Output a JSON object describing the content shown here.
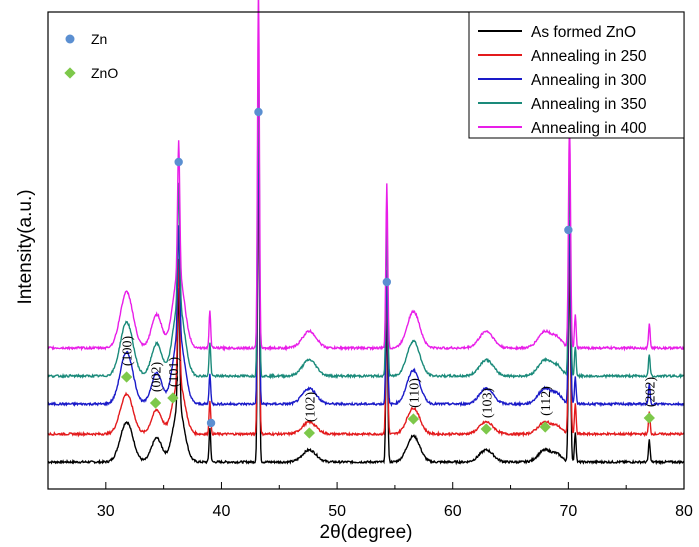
{
  "chart_data": {
    "type": "line",
    "title": "",
    "xlabel": "2θ(degree)",
    "ylabel": "Intensity(a.u.)",
    "xlim": [
      25,
      80
    ],
    "xticks": [
      30,
      40,
      50,
      60,
      70,
      80
    ],
    "y_ticks_shown": false,
    "grid": false,
    "legend_position": "top-right",
    "series": [
      {
        "name": "As formed ZnO",
        "color": "#000000",
        "baseline": 0,
        "zn_scale": 1.0,
        "zno_scale": 1.0
      },
      {
        "name": "Annealing in 250",
        "color": "#e31a1c",
        "baseline": 28,
        "zn_scale": 1.0,
        "zno_scale": 1.0
      },
      {
        "name": "Annealing in 300",
        "color": "#1a1ac8",
        "baseline": 58,
        "zn_scale": 0.9,
        "zno_scale": 1.3
      },
      {
        "name": "Annealing in 350",
        "color": "#1a8a7a",
        "baseline": 86,
        "zn_scale": 1.0,
        "zno_scale": 1.35
      },
      {
        "name": "Annealing in 400",
        "color": "#e81ee8",
        "baseline": 114,
        "zn_scale": 1.1,
        "zno_scale": 1.4
      }
    ],
    "peaks": {
      "zno": [
        {
          "x": 31.8,
          "h": 40,
          "w": 0.55
        },
        {
          "x": 34.4,
          "h": 24,
          "w": 0.45
        },
        {
          "x": 36.3,
          "h": 54,
          "w": 0.5
        },
        {
          "x": 47.6,
          "h": 12,
          "w": 0.6
        },
        {
          "x": 56.6,
          "h": 26,
          "w": 0.55
        },
        {
          "x": 62.9,
          "h": 12,
          "w": 0.6
        },
        {
          "x": 68.0,
          "h": 12,
          "w": 0.6
        },
        {
          "x": 69.1,
          "h": 6,
          "w": 0.4
        }
      ],
      "zn": [
        {
          "x": 36.3,
          "h": 120,
          "w": 0.09
        },
        {
          "x": 39.0,
          "h": 34,
          "w": 0.07
        },
        {
          "x": 43.2,
          "h": 330,
          "w": 0.08
        },
        {
          "x": 54.3,
          "h": 150,
          "w": 0.08
        },
        {
          "x": 70.1,
          "h": 205,
          "w": 0.09
        },
        {
          "x": 70.6,
          "h": 30,
          "w": 0.07
        },
        {
          "x": 77.0,
          "h": 22,
          "w": 0.07
        }
      ]
    },
    "markers": {
      "zn": {
        "label": "Zn",
        "color": "#5b8fd1",
        "positions": [
          [
            43.2,
            350
          ],
          [
            36.3,
            300
          ],
          [
            54.3,
            180
          ],
          [
            70.0,
            232
          ],
          [
            39.1,
            39
          ]
        ]
      },
      "zno": {
        "label": "ZnO",
        "color": "#7dc84a",
        "positions": [
          [
            31.8,
            85
          ],
          [
            34.3,
            59
          ],
          [
            35.8,
            64
          ],
          [
            47.6,
            29
          ],
          [
            56.6,
            43
          ],
          [
            62.9,
            33
          ],
          [
            68.0,
            35
          ],
          [
            77.0,
            44
          ]
        ]
      }
    },
    "annotations": [
      {
        "text": "(100)",
        "x": 31.8
      },
      {
        "text": "(002)",
        "x": 34.3
      },
      {
        "text": "(101)",
        "x": 35.8
      },
      {
        "text": "(102)",
        "x": 47.6
      },
      {
        "text": "(110)",
        "x": 56.6
      },
      {
        "text": "(103)",
        "x": 62.9
      },
      {
        "text": "(112)",
        "x": 68.0
      },
      {
        "text": "(202)",
        "x": 77.0
      }
    ]
  }
}
